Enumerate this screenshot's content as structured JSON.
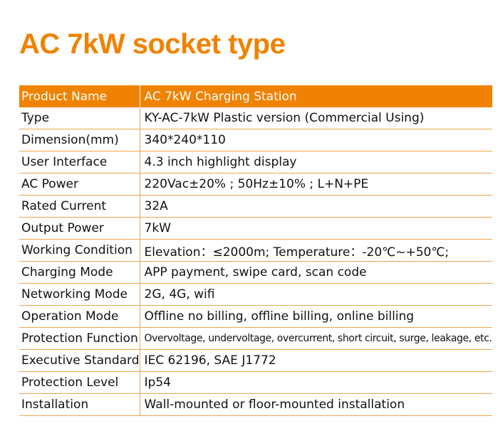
{
  "title": "AC 7kW socket type",
  "header": {
    "label": "Product Name",
    "value": "AC 7kW Charging Station"
  },
  "rows": [
    {
      "label": "Type",
      "value": "KY-AC-7kW Plastic version (Commercial Using)"
    },
    {
      "label": "Dimension(mm)",
      "value": "340*240*110"
    },
    {
      "label": "User Interface",
      "value": "4.3 inch highlight display"
    },
    {
      "label": "AC Power",
      "value": "220Vac±20% ; 50Hz±10% ; L+N+PE"
    },
    {
      "label": "Rated Current",
      "value": "32A"
    },
    {
      "label": "Output Power",
      "value": "7kW"
    },
    {
      "label": "Working Condition",
      "value": "Elevation：≤2000m; Temperature：-20℃~+50℃;"
    },
    {
      "label": "Charging Mode",
      "value": "APP payment, swipe card, scan code"
    },
    {
      "label": "Networking Mode",
      "value": "2G, 4G, wifi"
    },
    {
      "label": "Operation Mode",
      "value": "Offline no billing, offline billing, online billing"
    },
    {
      "label": "Protection Function",
      "value": "Overvoltage, undervoltage, overcurrent, short circuit, surge, leakage, etc."
    },
    {
      "label": "Executive Standard",
      "value": "IEC 62196, SAE J1772"
    },
    {
      "label": "Protection Level",
      "value": "Ip54"
    },
    {
      "label": "Installation",
      "value": "Wall-mounted or floor-mounted installation"
    }
  ],
  "colors": {
    "accent": "#ef8200",
    "divider": "#f2a650"
  }
}
